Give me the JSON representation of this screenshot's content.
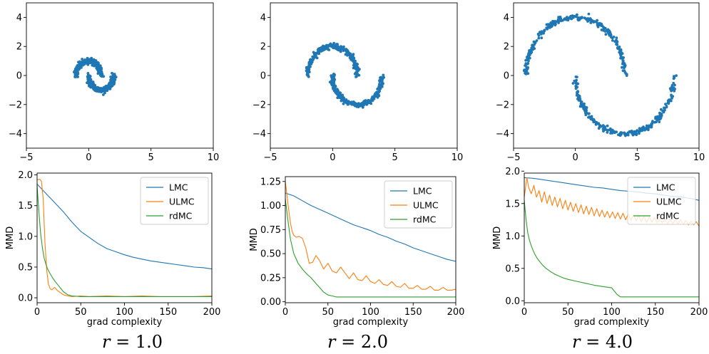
{
  "chart_data": [
    {
      "type": "scatter",
      "panel": "r1-scatter",
      "scale": 1.0,
      "xlim": [
        -5,
        10
      ],
      "ylim": [
        -5,
        5
      ],
      "xticks": [
        -5,
        0,
        5,
        10
      ],
      "yticks": [
        -4,
        -2,
        0,
        2,
        4
      ],
      "xtick_labels": [
        "−5",
        "0",
        "5",
        "10"
      ],
      "ytick_labels": [
        "−4",
        "−2",
        "0",
        "2",
        "4"
      ],
      "color": "#1f77b4",
      "points": []
    },
    {
      "type": "scatter",
      "panel": "r2-scatter",
      "scale": 2.0,
      "xlim": [
        -5,
        10
      ],
      "ylim": [
        -5,
        5
      ],
      "xticks": [
        -5,
        0,
        5,
        10
      ],
      "yticks": [
        -4,
        -2,
        0,
        2,
        4
      ],
      "xtick_labels": [
        "−5",
        "0",
        "5",
        "10"
      ],
      "ytick_labels": [
        "−4",
        "−2",
        "0",
        "2",
        "4"
      ],
      "color": "#1f77b4",
      "points": []
    },
    {
      "type": "scatter",
      "panel": "r4-scatter",
      "scale": 4.0,
      "xlim": [
        -5,
        10
      ],
      "ylim": [
        -5,
        5
      ],
      "xticks": [
        -5,
        0,
        5,
        10
      ],
      "yticks": [
        -4,
        -2,
        0,
        2,
        4
      ],
      "xtick_labels": [
        "−5",
        "0",
        "5",
        "10"
      ],
      "ytick_labels": [
        "−4",
        "−2",
        "0",
        "2",
        "4"
      ],
      "color": "#1f77b4",
      "points": []
    },
    {
      "type": "line",
      "panel": "r1-mmd",
      "xlabel": "grad complexity",
      "ylabel": "MMD",
      "xlim": [
        0,
        200
      ],
      "ylim": [
        -0.08,
        2.03
      ],
      "xticks": [
        0,
        50,
        100,
        150,
        200
      ],
      "yticks": [
        0.0,
        0.5,
        1.0,
        1.5,
        2.0
      ],
      "ytick_labels": [
        "0.0",
        "0.5",
        "1.0",
        "1.5",
        "2.0"
      ],
      "legend": "top-right",
      "series": [
        {
          "name": "LMC",
          "color": "#1f77b4",
          "x": [
            0,
            10,
            20,
            30,
            40,
            50,
            60,
            70,
            80,
            90,
            100,
            110,
            120,
            130,
            140,
            150,
            160,
            170,
            180,
            190,
            200
          ],
          "y": [
            1.85,
            1.7,
            1.55,
            1.4,
            1.23,
            1.08,
            0.98,
            0.88,
            0.8,
            0.75,
            0.7,
            0.66,
            0.63,
            0.6,
            0.58,
            0.56,
            0.54,
            0.52,
            0.5,
            0.49,
            0.47
          ]
        },
        {
          "name": "ULMC",
          "color": "#ff7f0e",
          "x": [
            0,
            3,
            5,
            7,
            9,
            11,
            13,
            15,
            17,
            20,
            23,
            26,
            30,
            35,
            40,
            50,
            60,
            80,
            100,
            120,
            140,
            160,
            180,
            200
          ],
          "y": [
            1.92,
            1.93,
            1.9,
            1.6,
            0.9,
            0.45,
            0.22,
            0.15,
            0.13,
            0.17,
            0.12,
            0.09,
            0.05,
            0.03,
            0.02,
            0.03,
            0.02,
            0.03,
            0.02,
            0.03,
            0.02,
            0.02,
            0.02,
            0.03
          ]
        },
        {
          "name": "rdMC",
          "color": "#2ca02c",
          "x": [
            0,
            2,
            4,
            6,
            8,
            10,
            12,
            15,
            18,
            21,
            25,
            30,
            35,
            40,
            50,
            60,
            80,
            100,
            120,
            140,
            160,
            180,
            200
          ],
          "y": [
            1.82,
            1.4,
            1.05,
            0.82,
            0.65,
            0.55,
            0.47,
            0.39,
            0.32,
            0.26,
            0.19,
            0.1,
            0.05,
            0.03,
            0.02,
            0.02,
            0.02,
            0.02,
            0.02,
            0.02,
            0.02,
            0.02,
            0.02
          ]
        }
      ]
    },
    {
      "type": "line",
      "panel": "r2-mmd",
      "xlabel": "grad complexity",
      "ylabel": "MMD",
      "xlim": [
        0,
        200
      ],
      "ylim": [
        -0.01,
        1.3
      ],
      "xticks": [
        0,
        50,
        100,
        150,
        200
      ],
      "yticks": [
        0.0,
        0.25,
        0.5,
        0.75,
        1.0,
        1.25
      ],
      "ytick_labels": [
        "0.00",
        "0.25",
        "0.50",
        "0.75",
        "1.00",
        "1.25"
      ],
      "legend": "top-right",
      "series": [
        {
          "name": "LMC",
          "color": "#1f77b4",
          "x": [
            0,
            10,
            20,
            30,
            40,
            50,
            60,
            70,
            80,
            90,
            100,
            110,
            120,
            130,
            140,
            150,
            160,
            170,
            180,
            190,
            200
          ],
          "y": [
            1.13,
            1.1,
            1.05,
            1.0,
            0.96,
            0.92,
            0.88,
            0.84,
            0.8,
            0.77,
            0.74,
            0.7,
            0.67,
            0.63,
            0.6,
            0.56,
            0.53,
            0.5,
            0.47,
            0.44,
            0.42
          ]
        },
        {
          "name": "ULMC",
          "color": "#ff7f0e",
          "x": [
            0,
            2,
            4,
            6,
            8,
            10,
            13,
            16,
            20,
            24,
            28,
            32,
            36,
            40,
            45,
            50,
            55,
            60,
            65,
            70,
            75,
            80,
            85,
            90,
            95,
            100,
            105,
            110,
            115,
            120,
            125,
            130,
            135,
            140,
            145,
            150,
            155,
            160,
            165,
            170,
            175,
            180,
            185,
            190,
            195,
            200
          ],
          "y": [
            1.25,
            1.1,
            0.95,
            0.82,
            0.73,
            0.69,
            0.67,
            0.68,
            0.66,
            0.56,
            0.4,
            0.41,
            0.48,
            0.43,
            0.34,
            0.4,
            0.32,
            0.3,
            0.36,
            0.3,
            0.24,
            0.3,
            0.23,
            0.22,
            0.27,
            0.21,
            0.19,
            0.23,
            0.18,
            0.17,
            0.21,
            0.16,
            0.15,
            0.19,
            0.14,
            0.14,
            0.17,
            0.13,
            0.13,
            0.16,
            0.12,
            0.12,
            0.15,
            0.12,
            0.12,
            0.13
          ]
        },
        {
          "name": "rdMC",
          "color": "#2ca02c",
          "x": [
            0,
            3,
            6,
            10,
            15,
            20,
            25,
            30,
            35,
            40,
            45,
            50,
            55,
            60,
            70,
            80,
            100,
            120,
            140,
            160,
            180,
            200
          ],
          "y": [
            1.07,
            0.85,
            0.65,
            0.5,
            0.4,
            0.34,
            0.29,
            0.25,
            0.2,
            0.15,
            0.1,
            0.07,
            0.06,
            0.05,
            0.05,
            0.05,
            0.05,
            0.05,
            0.05,
            0.05,
            0.05,
            0.05
          ]
        }
      ]
    },
    {
      "type": "line",
      "panel": "r4-mmd",
      "xlabel": "grad complexity",
      "ylabel": "MMD",
      "xlim": [
        0,
        200
      ],
      "ylim": [
        -0.03,
        1.97
      ],
      "xticks": [
        0,
        50,
        100,
        150,
        200
      ],
      "yticks": [
        0.0,
        0.5,
        1.0,
        1.5,
        2.0
      ],
      "ytick_labels": [
        "0.0",
        "0.5",
        "1.0",
        "1.5",
        "2.0"
      ],
      "legend": "top-right",
      "series": [
        {
          "name": "LMC",
          "color": "#1f77b4",
          "x": [
            0,
            10,
            20,
            30,
            40,
            50,
            60,
            70,
            80,
            90,
            100,
            110,
            120,
            130,
            140,
            150,
            160,
            170,
            180,
            190,
            200
          ],
          "y": [
            1.9,
            1.89,
            1.87,
            1.85,
            1.83,
            1.81,
            1.79,
            1.77,
            1.75,
            1.74,
            1.72,
            1.7,
            1.69,
            1.68,
            1.66,
            1.65,
            1.63,
            1.61,
            1.6,
            1.58,
            1.55
          ]
        },
        {
          "name": "ULMC",
          "color": "#ff7f0e",
          "x": [
            0,
            3,
            5,
            8,
            11,
            14,
            17,
            20,
            23,
            26,
            29,
            32,
            35,
            38,
            41,
            44,
            47,
            50,
            53,
            56,
            59,
            62,
            65,
            68,
            71,
            74,
            77,
            80,
            83,
            86,
            89,
            92,
            95,
            98,
            101,
            104,
            107,
            110,
            113,
            116,
            119,
            122,
            125,
            128,
            131,
            134,
            137,
            140,
            143,
            146,
            149,
            152,
            155,
            158,
            161,
            164,
            167,
            170,
            173,
            176,
            179,
            182,
            185,
            188,
            191,
            194,
            197,
            200
          ],
          "y": [
            1.6,
            1.9,
            1.75,
            1.65,
            1.78,
            1.6,
            1.7,
            1.52,
            1.68,
            1.5,
            1.63,
            1.47,
            1.6,
            1.45,
            1.58,
            1.42,
            1.55,
            1.4,
            1.52,
            1.38,
            1.5,
            1.36,
            1.48,
            1.34,
            1.46,
            1.33,
            1.44,
            1.31,
            1.42,
            1.3,
            1.4,
            1.29,
            1.38,
            1.28,
            1.37,
            1.27,
            1.36,
            1.26,
            1.35,
            1.25,
            1.34,
            1.24,
            1.33,
            1.23,
            1.32,
            1.22,
            1.31,
            1.21,
            1.3,
            1.21,
            1.29,
            1.2,
            1.28,
            1.2,
            1.27,
            1.19,
            1.26,
            1.19,
            1.25,
            1.18,
            1.25,
            1.18,
            1.24,
            1.17,
            1.23,
            1.17,
            1.22,
            1.15
          ]
        },
        {
          "name": "rdMC",
          "color": "#2ca02c",
          "x": [
            0,
            2,
            4,
            6,
            8,
            10,
            12,
            15,
            18,
            21,
            25,
            30,
            35,
            40,
            45,
            50,
            60,
            70,
            80,
            90,
            95,
            100,
            103,
            106,
            110,
            115,
            120,
            140,
            160,
            180,
            200
          ],
          "y": [
            1.55,
            1.25,
            1.05,
            0.93,
            0.85,
            0.78,
            0.72,
            0.65,
            0.6,
            0.55,
            0.5,
            0.45,
            0.41,
            0.38,
            0.35,
            0.33,
            0.3,
            0.27,
            0.24,
            0.22,
            0.21,
            0.2,
            0.15,
            0.1,
            0.06,
            0.06,
            0.06,
            0.06,
            0.06,
            0.06,
            0.06
          ]
        }
      ]
    }
  ],
  "captions": {
    "r1": {
      "var": "r",
      "eq": " = 1.0"
    },
    "r2": {
      "var": "r",
      "eq": " = 2.0"
    },
    "r4": {
      "var": "r",
      "eq": " = 4.0"
    }
  }
}
